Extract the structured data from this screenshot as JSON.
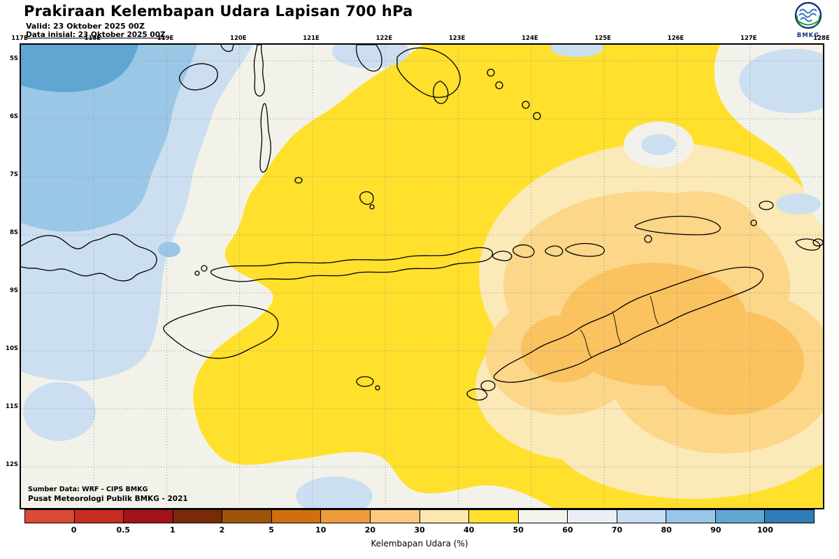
{
  "header": {
    "title": "Prakiraan Kelembapan Udara Lapisan 700 hPa",
    "valid": "Valid: 23 Oktober 2025 00Z",
    "init": "Data inisial: 23 Oktober 2025 00Z",
    "logo_label": "BMKG"
  },
  "map": {
    "lon_labels": [
      "117E",
      "118E",
      "119E",
      "120E",
      "121E",
      "122E",
      "123E",
      "124E",
      "125E",
      "126E",
      "127E",
      "128E"
    ],
    "lat_labels": [
      "5S",
      "6S",
      "7S",
      "8S",
      "9S",
      "10S",
      "11S",
      "12S"
    ],
    "source_line1": "Sumber Data: WRF - CIPS BMKG",
    "source_line2": "Pusat Meteorologi Publik BMKG - 2021",
    "palette": {
      "background": "#f3f2ea",
      "yellow": "#ffe02d",
      "cream": "#fbe9b7",
      "light_orange": "#fcd689",
      "orange": "#fbc260",
      "pale_blue": "#cbdff1",
      "mid_blue": "#9ac7e6",
      "deep_blue": "#5fa6d3"
    }
  },
  "legend": {
    "title": "Kelembapan Udara (%)",
    "unit": "%",
    "tick_labels": [
      "0",
      "0.5",
      "1",
      "2",
      "5",
      "10",
      "20",
      "30",
      "40",
      "50",
      "60",
      "70",
      "80",
      "90",
      "100"
    ],
    "segment_colors": [
      "#db4a35",
      "#c92c20",
      "#a31318",
      "#7a2a08",
      "#9e5408",
      "#cf6f12",
      "#ee9b3c",
      "#fbc97f",
      "#fde7b0",
      "#ffe02d",
      "#f4f3ea",
      "#e9eff5",
      "#c9def1",
      "#97c6e6",
      "#61a7d2",
      "#2e7cb8"
    ]
  }
}
